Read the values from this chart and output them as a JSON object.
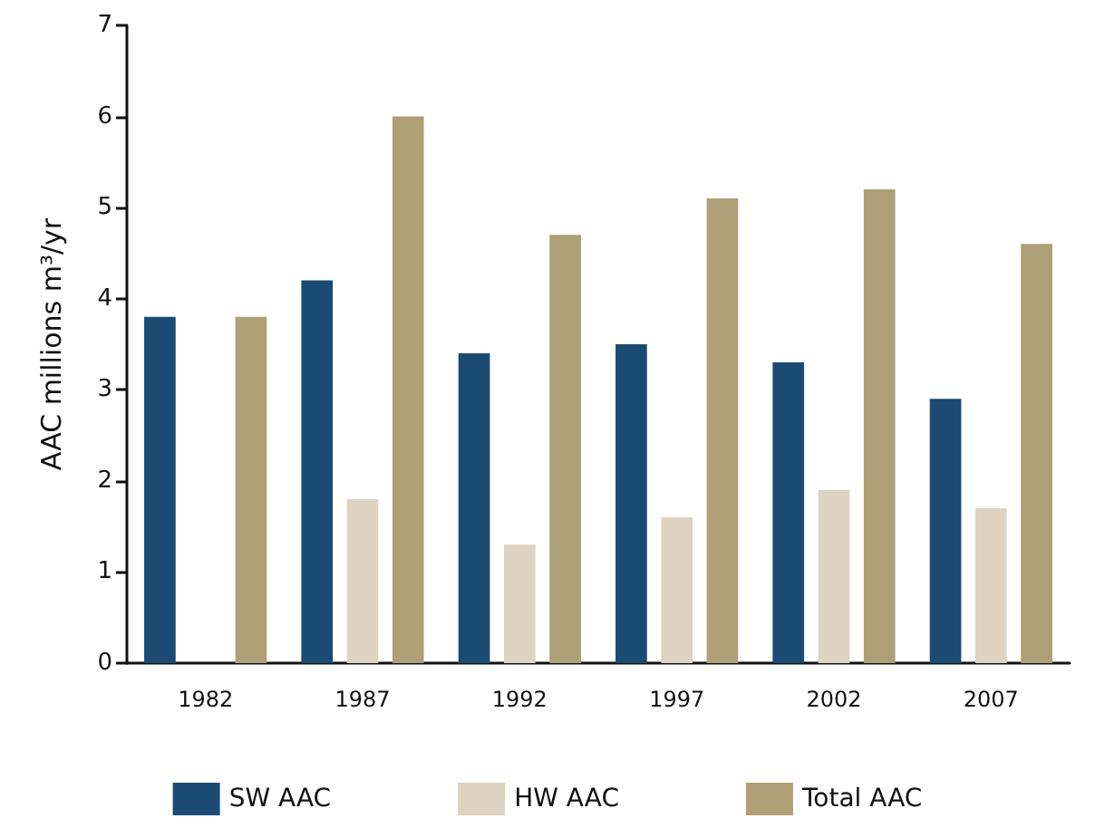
{
  "chart_data": {
    "type": "bar",
    "ylabel": "AAC millions m³/yr",
    "categories": [
      "1982",
      "1987",
      "1992",
      "1997",
      "2002",
      "2007"
    ],
    "series": [
      {
        "name": "SW AAC",
        "color": "#1b4a72",
        "values": [
          3.8,
          4.2,
          3.4,
          3.5,
          3.3,
          2.9
        ]
      },
      {
        "name": "HW AAC",
        "color": "#ddd3c0",
        "values": [
          null,
          1.8,
          1.3,
          1.6,
          1.9,
          1.7
        ]
      },
      {
        "name": "Total AAC",
        "color": "#ae9f77",
        "values": [
          3.8,
          6.0,
          4.7,
          5.1,
          5.2,
          4.6
        ]
      }
    ],
    "ylim": [
      0,
      7
    ],
    "yticks": [
      0,
      1,
      2,
      3,
      4,
      5,
      6,
      7
    ],
    "grid": false,
    "legend": "bottom"
  }
}
